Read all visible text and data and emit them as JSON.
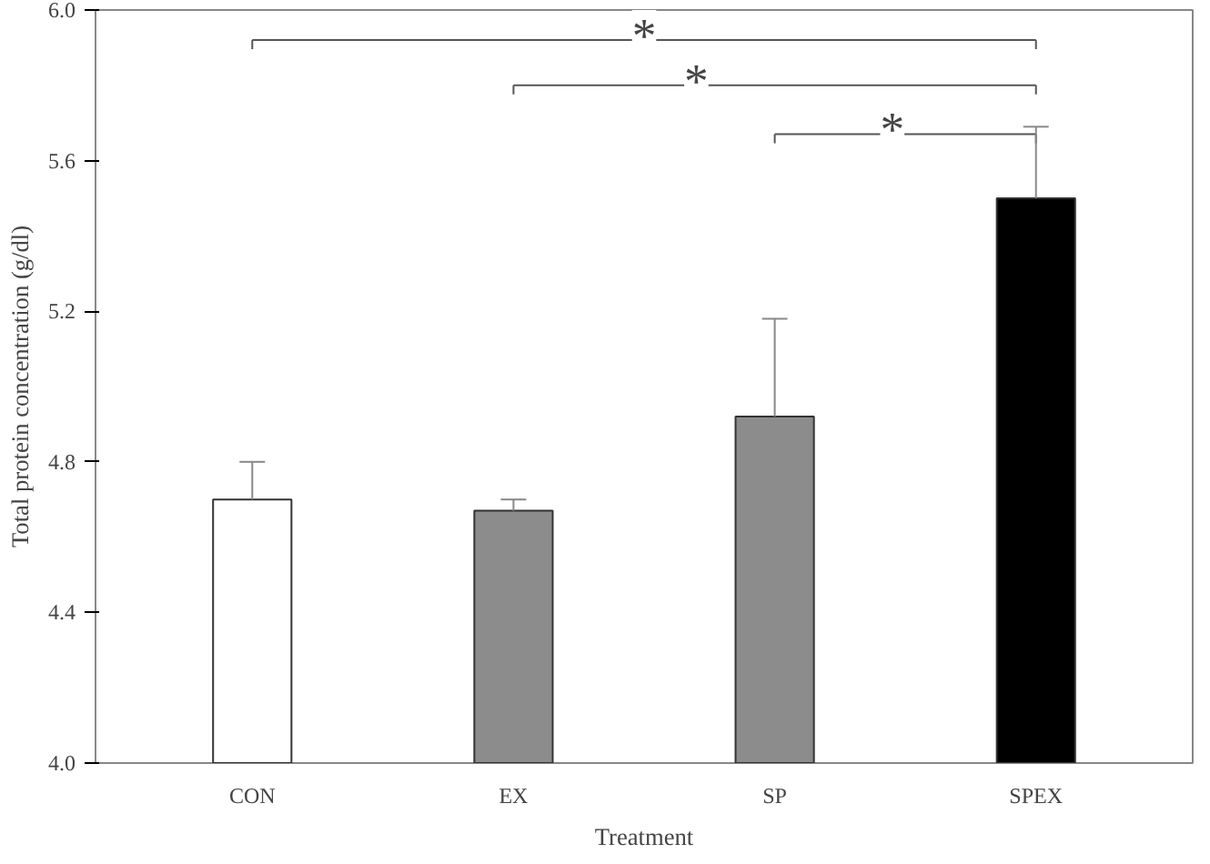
{
  "chart_data": {
    "type": "bar",
    "xlabel": "Treatment",
    "ylabel": "Total protein concentration (g/dl)",
    "categories": [
      "CON",
      "EX",
      "SP",
      "SPEX"
    ],
    "values": [
      4.7,
      4.67,
      4.92,
      5.5
    ],
    "errors": [
      [
        4.7,
        4.8
      ],
      [
        4.67,
        4.7
      ],
      [
        4.92,
        5.18
      ],
      [
        5.5,
        5.69
      ]
    ],
    "colors": [
      "#ffffff",
      "#8c8c8c",
      "#8c8c8c",
      "#000000"
    ],
    "ylim": [
      4.0,
      6.0
    ],
    "yticks": [
      {
        "value": 4.0,
        "label": "4.0"
      },
      {
        "value": 4.4,
        "label": "4.4"
      },
      {
        "value": 4.8,
        "label": "4.8"
      },
      {
        "value": 5.2,
        "label": "5.2"
      },
      {
        "value": 5.6,
        "label": "5.6"
      },
      {
        "value": 6.0,
        "label": "6.0"
      }
    ],
    "grid": false,
    "annotations": [
      "*",
      "*",
      "*"
    ]
  }
}
